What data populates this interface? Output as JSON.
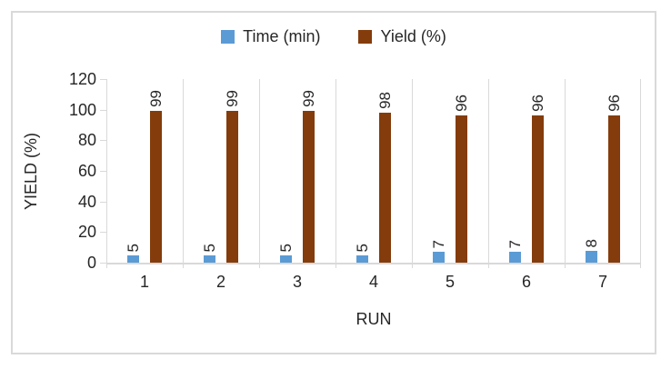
{
  "chart_data": {
    "type": "bar",
    "title": "",
    "categories": [
      "1",
      "2",
      "3",
      "4",
      "5",
      "6",
      "7"
    ],
    "series": [
      {
        "name": "Time (min)",
        "color": "#5B9BD5",
        "values": [
          5,
          5,
          5,
          5,
          7,
          7,
          8
        ]
      },
      {
        "name": "Yield (%)",
        "color": "#843C0C",
        "values": [
          99,
          99,
          99,
          98,
          96,
          96,
          96
        ]
      }
    ],
    "xlabel": "RUN",
    "ylabel": "YIELD (%)",
    "ylim": [
      0,
      120
    ],
    "yticks": [
      0,
      20,
      40,
      60,
      80,
      100,
      120
    ],
    "legend_position": "top",
    "data_labels": "rotated-90",
    "gridlines": "vertical-category-boundaries",
    "colors": {
      "gridline": "#D9D9D9",
      "axis_line": "#D9D9D9",
      "chart_border": "#D9D9D9",
      "background": "#FFFFFF",
      "text": "#262626"
    }
  }
}
